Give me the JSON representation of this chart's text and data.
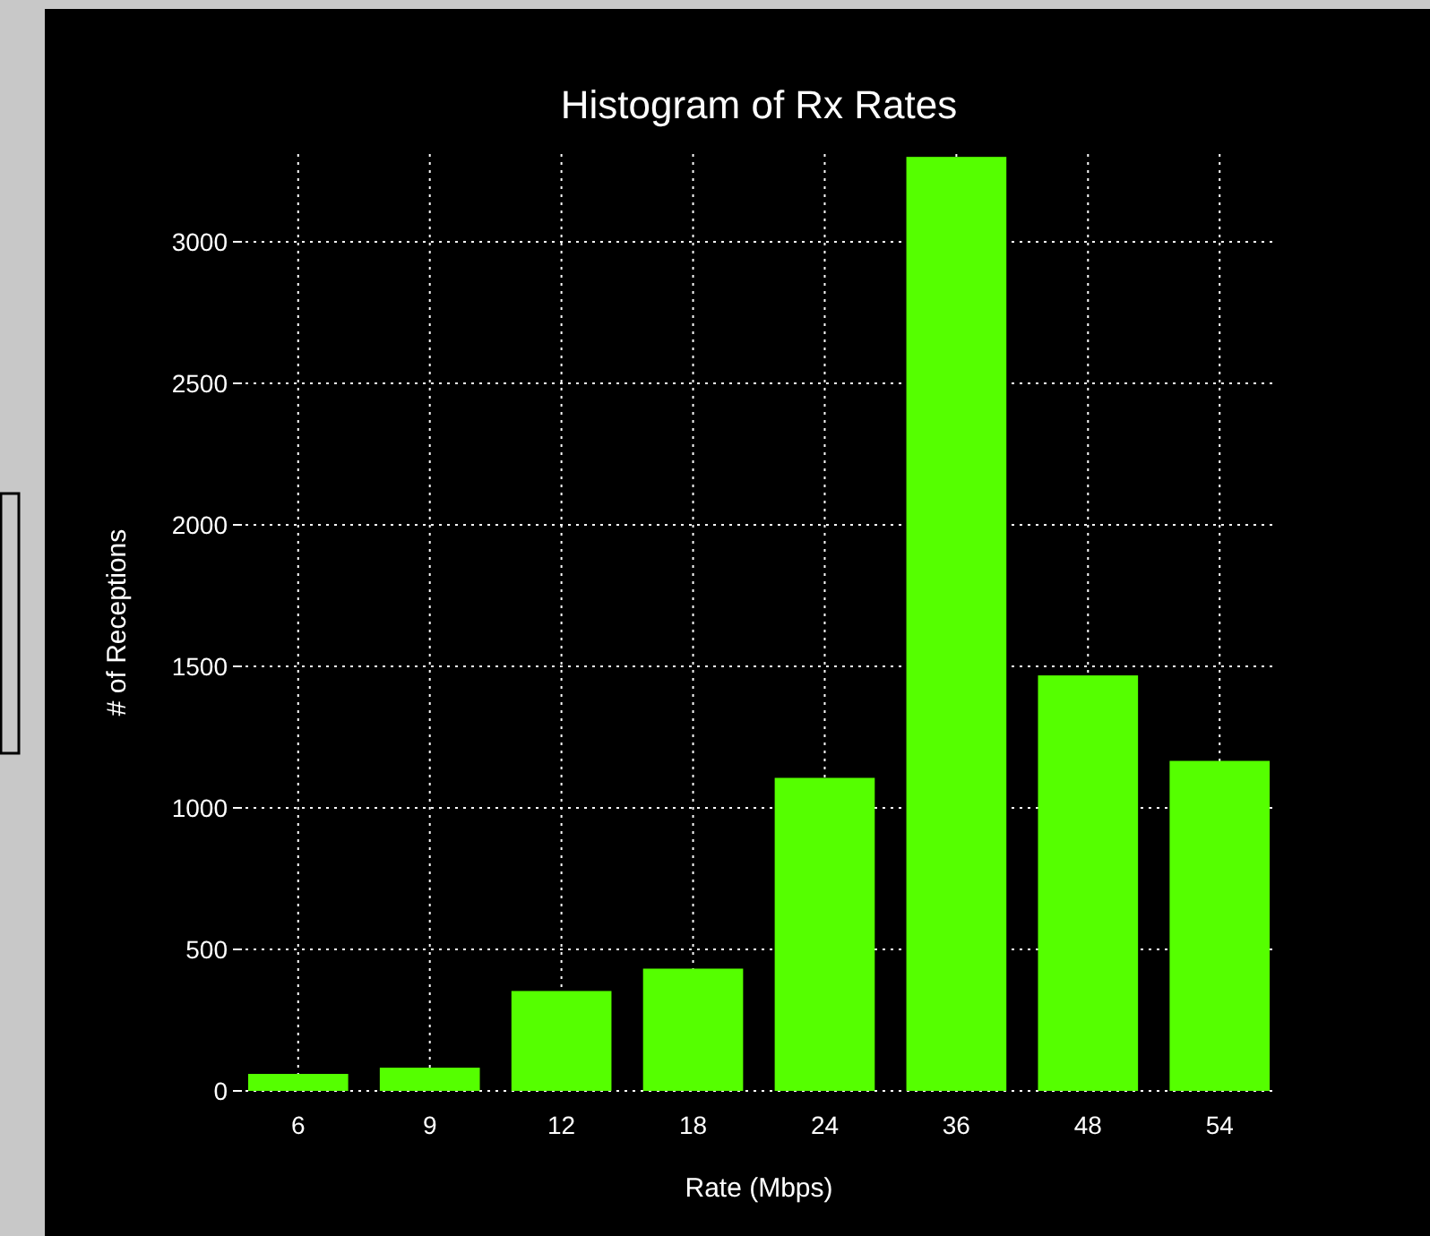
{
  "chart_data": {
    "type": "bar",
    "title": "Histogram of Rx Rates",
    "xlabel": "Rate (Mbps)",
    "ylabel": "# of Receptions",
    "categories": [
      "6",
      "9",
      "12",
      "18",
      "24",
      "36",
      "48",
      "54"
    ],
    "values": [
      60,
      82,
      353,
      432,
      1106,
      3300,
      1468,
      1166
    ],
    "color": "#55ff00",
    "ylim": [
      0,
      3310
    ],
    "yticks": [
      0,
      500,
      1000,
      1500,
      2000,
      2500,
      3000
    ],
    "grid": true
  }
}
